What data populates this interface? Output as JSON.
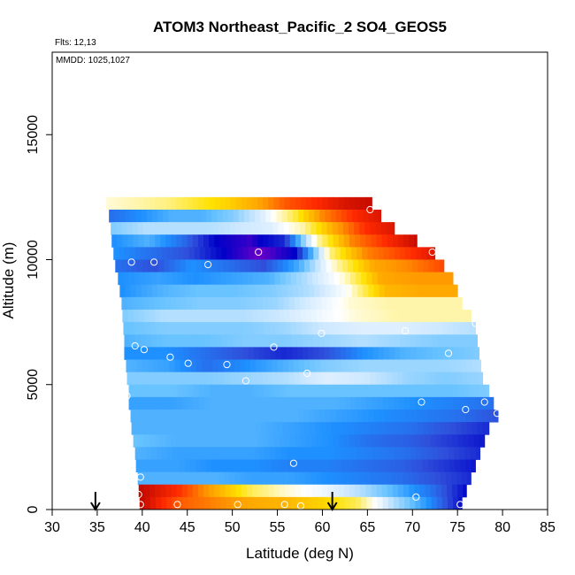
{
  "chart_data": {
    "type": "heatmap",
    "title": "ATOM3 Northeast_Pacific_2 SO4_GEOS5",
    "flights_label": "Flts: 12,13",
    "dates_label": "MMDD: 1025,1027",
    "xlabel": "Latitude (deg N)",
    "ylabel": "Altitude (m)",
    "xlim": [
      30,
      85
    ],
    "ylim": [
      0,
      18300
    ],
    "x_ticks": [
      30,
      35,
      40,
      45,
      50,
      55,
      60,
      65,
      70,
      75,
      80,
      85
    ],
    "y_ticks": [
      0,
      5000,
      10000,
      15000
    ],
    "x_tick_labels": [
      "30",
      "35",
      "40",
      "45",
      "50",
      "55",
      "60",
      "65",
      "70",
      "75",
      "80",
      "85"
    ],
    "y_tick_labels": [
      "0",
      "5000",
      "10000",
      "15000"
    ],
    "arrows_at_latitude": [
      34.8,
      61.1
    ],
    "colormap": [
      "#ffffff",
      "#cde8ff",
      "#69c3ff",
      "#1e90ff",
      "#2f4fdb",
      "#0000c8",
      "#6b00c8",
      "#ffe100",
      "#ff9a00",
      "#ff2a00",
      "#b00000"
    ],
    "bands": [
      {
        "alt_bot": 12000,
        "alt_top": 12500,
        "lat_start": 36,
        "lat_end": 65.5,
        "cells": [
          0.05,
          0.1,
          0.15,
          0.25,
          0.35,
          0.5,
          0.7,
          0.8,
          0.9,
          0.95
        ]
      },
      {
        "alt_bot": 11500,
        "alt_top": 12000,
        "lat_start": 36.3,
        "lat_end": 66.5,
        "cells": [
          -0.6,
          -0.5,
          -0.4,
          -0.4,
          -0.3,
          -0.1,
          0.2,
          0.6,
          0.8,
          0.9
        ]
      },
      {
        "alt_bot": 11000,
        "alt_top": 11500,
        "lat_start": 36.5,
        "lat_end": 68,
        "cells": [
          -0.3,
          -0.2,
          -0.2,
          -0.2,
          -0.15,
          -0.1,
          0.1,
          0.5,
          0.8,
          0.9
        ]
      },
      {
        "alt_bot": 10500,
        "alt_top": 11000,
        "lat_start": 36.6,
        "lat_end": 70.5,
        "cells": [
          -0.5,
          -0.4,
          -0.6,
          -0.9,
          -0.95,
          -0.8,
          0.1,
          0.6,
          0.8,
          0.95
        ]
      },
      {
        "alt_bot": 10000,
        "alt_top": 10500,
        "lat_start": 36.8,
        "lat_end": 72.5,
        "cells": [
          -0.5,
          -0.6,
          -0.7,
          -0.9,
          -1.0,
          -0.9,
          0.15,
          0.6,
          0.75,
          0.9
        ]
      },
      {
        "alt_bot": 9500,
        "alt_top": 10000,
        "lat_start": 37,
        "lat_end": 73.5,
        "cells": [
          -0.6,
          -0.7,
          -0.5,
          -0.6,
          -0.7,
          -0.4,
          0.1,
          0.5,
          0.6,
          0.75
        ]
      },
      {
        "alt_bot": 9000,
        "alt_top": 9500,
        "lat_start": 37.3,
        "lat_end": 74.5,
        "cells": [
          -0.5,
          -0.45,
          -0.5,
          -0.45,
          -0.4,
          -0.2,
          0.05,
          0.5,
          0.55,
          0.55
        ]
      },
      {
        "alt_bot": 8500,
        "alt_top": 9000,
        "lat_start": 37.5,
        "lat_end": 75,
        "cells": [
          -0.5,
          -0.4,
          -0.35,
          -0.35,
          -0.3,
          -0.2,
          0.0,
          0.45,
          0.5,
          0.5
        ]
      },
      {
        "alt_bot": 8000,
        "alt_top": 8500,
        "lat_start": 37.7,
        "lat_end": 75.5,
        "cells": [
          -0.4,
          -0.35,
          -0.3,
          -0.3,
          -0.25,
          -0.1,
          0.05,
          0.1,
          0.1,
          0.1
        ]
      },
      {
        "alt_bot": 7500,
        "alt_top": 8000,
        "lat_start": 37.8,
        "lat_end": 76.5,
        "cells": [
          -0.3,
          -0.2,
          -0.2,
          -0.2,
          -0.15,
          -0.05,
          0.05,
          0.1,
          0.1,
          0.1
        ]
      },
      {
        "alt_bot": 7000,
        "alt_top": 7500,
        "lat_start": 37.9,
        "lat_end": 77,
        "cells": [
          -0.35,
          -0.3,
          -0.3,
          -0.3,
          -0.25,
          -0.15,
          -0.1,
          -0.1,
          -0.15,
          -0.2
        ]
      },
      {
        "alt_bot": 6500,
        "alt_top": 7000,
        "lat_start": 38,
        "lat_end": 77.2,
        "cells": [
          -0.4,
          -0.35,
          -0.35,
          -0.3,
          -0.3,
          -0.25,
          -0.2,
          -0.25,
          -0.3,
          -0.3
        ]
      },
      {
        "alt_bot": 6000,
        "alt_top": 6500,
        "lat_start": 38,
        "lat_end": 77.4,
        "cells": [
          -0.5,
          -0.5,
          -0.6,
          -0.7,
          -0.8,
          -0.7,
          -0.5,
          -0.4,
          -0.35,
          -0.3
        ]
      },
      {
        "alt_bot": 5500,
        "alt_top": 6000,
        "lat_start": 38.2,
        "lat_end": 77.6,
        "cells": [
          -0.4,
          -0.45,
          -0.6,
          -0.5,
          -0.4,
          -0.3,
          -0.25,
          -0.25,
          -0.25,
          -0.2
        ]
      },
      {
        "alt_bot": 5000,
        "alt_top": 5500,
        "lat_start": 38.3,
        "lat_end": 77.8,
        "cells": [
          -0.3,
          -0.3,
          -0.3,
          -0.25,
          -0.2,
          -0.1,
          -0.15,
          -0.25,
          -0.3,
          -0.25
        ]
      },
      {
        "alt_bot": 4500,
        "alt_top": 5000,
        "lat_start": 38.5,
        "lat_end": 78.5,
        "cells": [
          -0.35,
          -0.35,
          -0.4,
          -0.4,
          -0.35,
          -0.35,
          -0.35,
          -0.35,
          -0.35,
          -0.3
        ]
      },
      {
        "alt_bot": 4000,
        "alt_top": 4500,
        "lat_start": 38.5,
        "lat_end": 79,
        "cells": [
          -0.45,
          -0.45,
          -0.4,
          -0.4,
          -0.4,
          -0.4,
          -0.45,
          -0.5,
          -0.55,
          -0.6
        ]
      },
      {
        "alt_bot": 3500,
        "alt_top": 4000,
        "lat_start": 38.7,
        "lat_end": 79.5,
        "cells": [
          -0.4,
          -0.4,
          -0.4,
          -0.4,
          -0.4,
          -0.45,
          -0.5,
          -0.55,
          -0.6,
          -0.7
        ]
      },
      {
        "alt_bot": 3000,
        "alt_top": 3500,
        "lat_start": 38.8,
        "lat_end": 78.5,
        "cells": [
          -0.4,
          -0.4,
          -0.4,
          -0.4,
          -0.45,
          -0.5,
          -0.55,
          -0.6,
          -0.7,
          -0.8
        ]
      },
      {
        "alt_bot": 2500,
        "alt_top": 3000,
        "lat_start": 39,
        "lat_end": 78,
        "cells": [
          -0.35,
          -0.4,
          -0.4,
          -0.4,
          -0.45,
          -0.5,
          -0.6,
          -0.65,
          -0.75,
          -0.85
        ]
      },
      {
        "alt_bot": 2000,
        "alt_top": 2500,
        "lat_start": 39.2,
        "lat_end": 77.5,
        "cells": [
          -0.4,
          -0.45,
          -0.45,
          -0.45,
          -0.5,
          -0.5,
          -0.55,
          -0.6,
          -0.7,
          -0.8
        ]
      },
      {
        "alt_bot": 1500,
        "alt_top": 2000,
        "lat_start": 39.3,
        "lat_end": 77,
        "cells": [
          -0.45,
          -0.45,
          -0.5,
          -0.5,
          -0.55,
          -0.55,
          -0.6,
          -0.65,
          -0.75,
          -0.85
        ]
      },
      {
        "alt_bot": 1000,
        "alt_top": 1500,
        "lat_start": 39.5,
        "lat_end": 76.5,
        "cells": [
          -0.4,
          -0.4,
          -0.4,
          -0.45,
          -0.45,
          -0.5,
          -0.55,
          -0.6,
          -0.7,
          -0.8
        ]
      },
      {
        "alt_bot": 500,
        "alt_top": 1000,
        "lat_start": 39.6,
        "lat_end": 76,
        "cells": [
          0.95,
          0.8,
          0.5,
          0.2,
          0.05,
          -0.05,
          -0.2,
          -0.4,
          -0.6,
          -0.9
        ]
      },
      {
        "alt_bot": 0,
        "alt_top": 500,
        "lat_start": 39.7,
        "lat_end": 75.5,
        "cells": [
          0.95,
          0.7,
          0.6,
          0.5,
          0.45,
          0.35,
          0.2,
          -0.2,
          -0.5,
          -0.9
        ]
      }
    ],
    "observations": [
      {
        "lat": 65.3,
        "alt": 12000
      },
      {
        "lat": 72.2,
        "alt": 10300
      },
      {
        "lat": 52.9,
        "alt": 10300
      },
      {
        "lat": 38.8,
        "alt": 9900
      },
      {
        "lat": 41.3,
        "alt": 9900
      },
      {
        "lat": 47.3,
        "alt": 9800
      },
      {
        "lat": 37.3,
        "alt": 7200
      },
      {
        "lat": 59.9,
        "alt": 7050
      },
      {
        "lat": 69.2,
        "alt": 7150
      },
      {
        "lat": 77.0,
        "alt": 7450
      },
      {
        "lat": 39.2,
        "alt": 6550
      },
      {
        "lat": 40.2,
        "alt": 6400
      },
      {
        "lat": 54.6,
        "alt": 6500
      },
      {
        "lat": 43.1,
        "alt": 6100
      },
      {
        "lat": 74.0,
        "alt": 6250
      },
      {
        "lat": 45.1,
        "alt": 5850
      },
      {
        "lat": 49.4,
        "alt": 5800
      },
      {
        "lat": 58.3,
        "alt": 5450
      },
      {
        "lat": 51.5,
        "alt": 5150
      },
      {
        "lat": 38.3,
        "alt": 4550
      },
      {
        "lat": 71.0,
        "alt": 4300
      },
      {
        "lat": 78.0,
        "alt": 4300
      },
      {
        "lat": 75.9,
        "alt": 4000
      },
      {
        "lat": 79.4,
        "alt": 3850
      },
      {
        "lat": 56.8,
        "alt": 1850
      },
      {
        "lat": 39.8,
        "alt": 1300
      },
      {
        "lat": 39.6,
        "alt": 600
      },
      {
        "lat": 70.4,
        "alt": 500
      },
      {
        "lat": 39.8,
        "alt": 200
      },
      {
        "lat": 43.9,
        "alt": 200
      },
      {
        "lat": 50.6,
        "alt": 200
      },
      {
        "lat": 55.8,
        "alt": 200
      },
      {
        "lat": 57.6,
        "alt": 150
      },
      {
        "lat": 75.3,
        "alt": 200
      }
    ]
  }
}
